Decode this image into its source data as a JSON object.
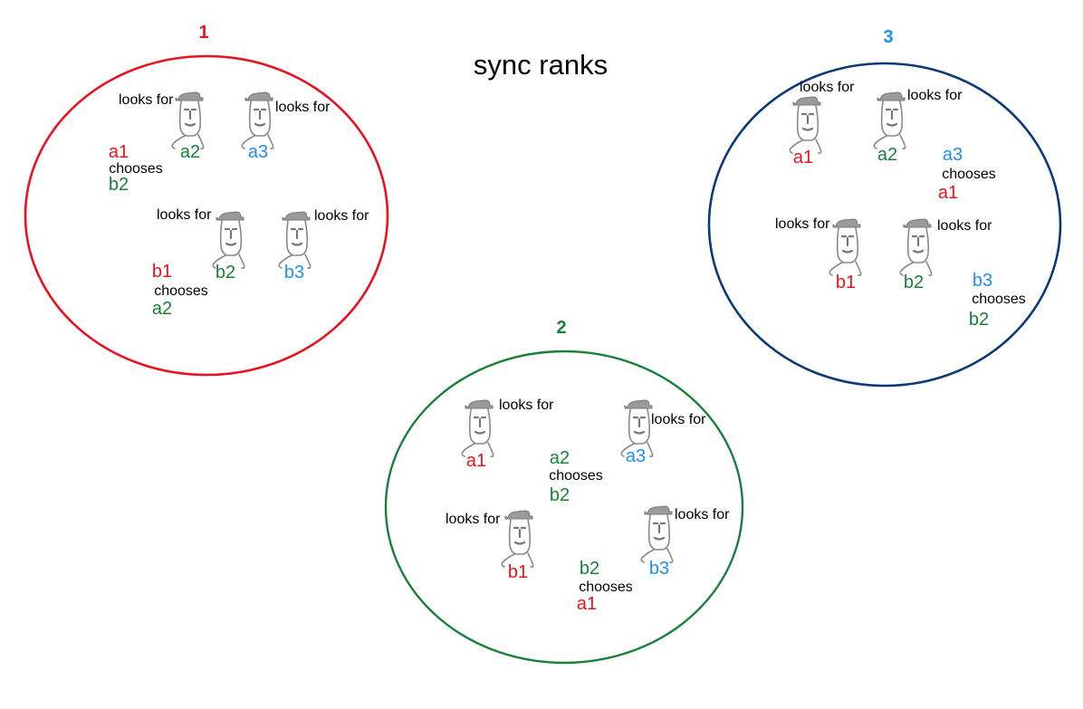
{
  "title": "sync ranks",
  "colors": {
    "red": "#e8131f",
    "green": "#1a7f3a",
    "blue": "#1f8ff0",
    "navy": "#0a3a78",
    "black": "#000000"
  },
  "groups": [
    {
      "number": "1",
      "ring_color": "red",
      "number_color": "red",
      "blocks": [
        {
          "lookers": [
            {
              "text": "looks for",
              "side": "left"
            },
            {
              "text": "looks for",
              "side": "right"
            }
          ],
          "labels": [
            {
              "text": "a2",
              "color": "green"
            },
            {
              "text": "a3",
              "color": "blue"
            }
          ],
          "choice": {
            "who": "a1",
            "who_color": "red",
            "verb": "chooses",
            "whom": "b2",
            "whom_color": "green"
          }
        },
        {
          "lookers": [
            {
              "text": "looks for",
              "side": "left"
            },
            {
              "text": "looks for",
              "side": "right"
            }
          ],
          "labels": [
            {
              "text": "b2",
              "color": "green"
            },
            {
              "text": "b3",
              "color": "blue"
            }
          ],
          "choice": {
            "who": "b1",
            "who_color": "red",
            "verb": "chooses",
            "whom": "a2",
            "whom_color": "green"
          }
        }
      ]
    },
    {
      "number": "2",
      "ring_color": "green",
      "number_color": "green",
      "blocks": [
        {
          "lookers": [
            {
              "text": "looks for",
              "side": "right"
            },
            {
              "text": "looks for",
              "side": "right"
            }
          ],
          "labels": [
            {
              "text": "a1",
              "color": "red"
            },
            {
              "text": "a3",
              "color": "blue"
            }
          ],
          "choice": {
            "who": "a2",
            "who_color": "green",
            "verb": "chooses",
            "whom": "b2",
            "whom_color": "green"
          }
        },
        {
          "lookers": [
            {
              "text": "looks for",
              "side": "left"
            },
            {
              "text": "looks for",
              "side": "right"
            }
          ],
          "labels": [
            {
              "text": "b1",
              "color": "red"
            },
            {
              "text": "b3",
              "color": "blue"
            }
          ],
          "choice": {
            "who": "b2",
            "who_color": "green",
            "verb": "chooses",
            "whom": "a1",
            "whom_color": "red"
          }
        }
      ]
    },
    {
      "number": "3",
      "ring_color": "navy",
      "number_color": "blue",
      "blocks": [
        {
          "lookers": [
            {
              "text": "looks for",
              "side": "top"
            },
            {
              "text": "looks for",
              "side": "right"
            }
          ],
          "labels": [
            {
              "text": "a1",
              "color": "red"
            },
            {
              "text": "a2",
              "color": "green"
            }
          ],
          "choice": {
            "who": "a3",
            "who_color": "blue",
            "verb": "chooses",
            "whom": "a1",
            "whom_color": "red"
          }
        },
        {
          "lookers": [
            {
              "text": "looks for",
              "side": "left"
            },
            {
              "text": "looks for",
              "side": "right"
            }
          ],
          "labels": [
            {
              "text": "b1",
              "color": "red"
            },
            {
              "text": "b2",
              "color": "green"
            }
          ],
          "choice": {
            "who": "b3",
            "who_color": "blue",
            "verb": "chooses",
            "whom": "b2",
            "whom_color": "green"
          }
        }
      ]
    }
  ]
}
